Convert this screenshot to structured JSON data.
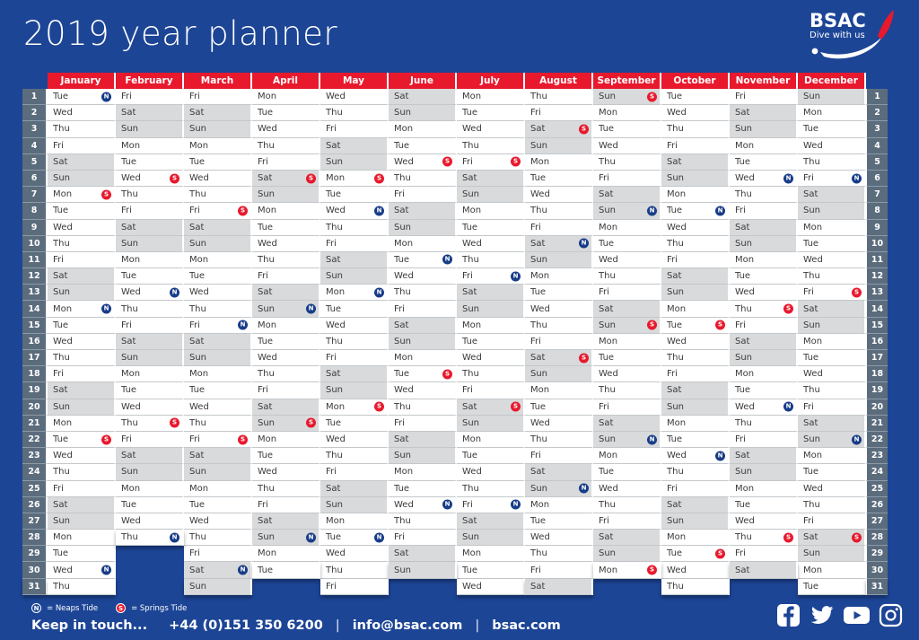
{
  "title": "2019 year planner",
  "logo": {
    "name": "BSAC",
    "tagline": "Dive with us"
  },
  "colors": {
    "background_blue": "#1d4596",
    "header_red": "#e8192d",
    "number_column_slate": "#5b6c7d",
    "weekend_gray": "#d8dadb",
    "neaps_badge_blue": "#173c88",
    "springs_badge_red": "#e8192d"
  },
  "calendar": {
    "day_names": [
      "Mon",
      "Tue",
      "Wed",
      "Thu",
      "Fri",
      "Sat",
      "Sun"
    ],
    "row_numbers_min": 1,
    "row_numbers_max": 31,
    "months": [
      {
        "name": "January",
        "dow1": 1,
        "days": 31,
        "badges": {
          "1": "N",
          "7": "S",
          "14": "N",
          "22": "S",
          "30": "N"
        }
      },
      {
        "name": "February",
        "dow1": 4,
        "days": 28,
        "badges": {
          "6": "S",
          "13": "N",
          "21": "S",
          "28": "N"
        }
      },
      {
        "name": "March",
        "dow1": 4,
        "days": 31,
        "badges": {
          "8": "S",
          "15": "N",
          "22": "S",
          "30": "N"
        }
      },
      {
        "name": "April",
        "dow1": 0,
        "days": 30,
        "badges": {
          "6": "S",
          "14": "N",
          "21": "S",
          "28": "N"
        }
      },
      {
        "name": "May",
        "dow1": 2,
        "days": 31,
        "badges": {
          "6": "S",
          "8": "N",
          "13": "N",
          "20": "S",
          "28": "N"
        }
      },
      {
        "name": "June",
        "dow1": 5,
        "days": 30,
        "badges": {
          "5": "S",
          "11": "N",
          "18": "S",
          "26": "N"
        }
      },
      {
        "name": "July",
        "dow1": 0,
        "days": 31,
        "badges": {
          "5": "S",
          "12": "N",
          "20": "S",
          "26": "N"
        }
      },
      {
        "name": "August",
        "dow1": 3,
        "days": 31,
        "badges": {
          "3": "S",
          "10": "N",
          "17": "S",
          "25": "N"
        }
      },
      {
        "name": "September",
        "dow1": 6,
        "days": 30,
        "badges": {
          "1": "S",
          "8": "N",
          "15": "S",
          "22": "N",
          "30": "S"
        }
      },
      {
        "name": "October",
        "dow1": 1,
        "days": 31,
        "badges": {
          "8": "N",
          "15": "S",
          "23": "N",
          "29": "S"
        }
      },
      {
        "name": "November",
        "dow1": 4,
        "days": 30,
        "badges": {
          "6": "N",
          "14": "S",
          "20": "N",
          "28": "S"
        }
      },
      {
        "name": "December",
        "dow1": 6,
        "days": 31,
        "badges": {
          "6": "N",
          "13": "S",
          "22": "N",
          "28": "S"
        }
      }
    ]
  },
  "legend": {
    "n": "N",
    "neaps_label": "= Neaps Tide",
    "s": "S",
    "springs_label": "= Springs Tide"
  },
  "footer": {
    "keep_in_touch": "Keep in touch...",
    "phone": "+44 (0)151 350 6200",
    "separator": "|",
    "email": "info@bsac.com",
    "website": "bsac.com"
  },
  "social": [
    "facebook",
    "twitter",
    "youtube",
    "instagram"
  ]
}
